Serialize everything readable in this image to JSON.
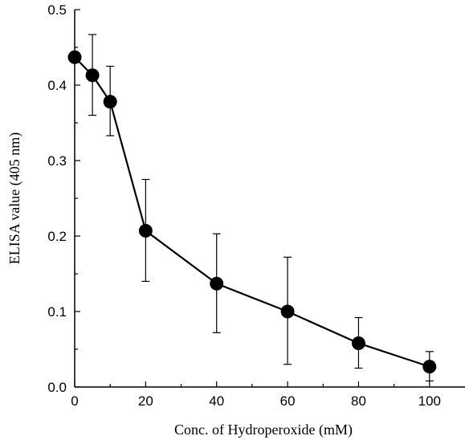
{
  "chart_data": {
    "type": "line",
    "title": "",
    "xlabel": "Conc. of Hydroperoxide (mM)",
    "ylabel": "ELISA value (405 nm)",
    "xlim": [
      0,
      110
    ],
    "ylim": [
      0,
      0.5
    ],
    "x_ticks": [
      0,
      20,
      40,
      60,
      80,
      100
    ],
    "y_ticks": [
      0.0,
      0.1,
      0.2,
      0.3,
      0.4,
      0.5
    ],
    "x_tick_labels": [
      "0",
      "20",
      "40",
      "60",
      "80",
      "100"
    ],
    "y_tick_labels": [
      "0.0",
      "0.1",
      "0.2",
      "0.3",
      "0.4",
      "0.5"
    ],
    "grid": false,
    "legend": "none",
    "series": [
      {
        "x": [
          0,
          5,
          10,
          20,
          40,
          60,
          80,
          100
        ],
        "y": [
          0.437,
          0.413,
          0.378,
          0.207,
          0.137,
          0.1,
          0.058,
          0.027
        ],
        "err_low": [
          0.437,
          0.36,
          0.333,
          0.14,
          0.072,
          0.03,
          0.025,
          0.008
        ],
        "err_high": [
          0.437,
          0.467,
          0.425,
          0.275,
          0.203,
          0.172,
          0.092,
          0.047
        ],
        "color": "#000000"
      }
    ]
  }
}
